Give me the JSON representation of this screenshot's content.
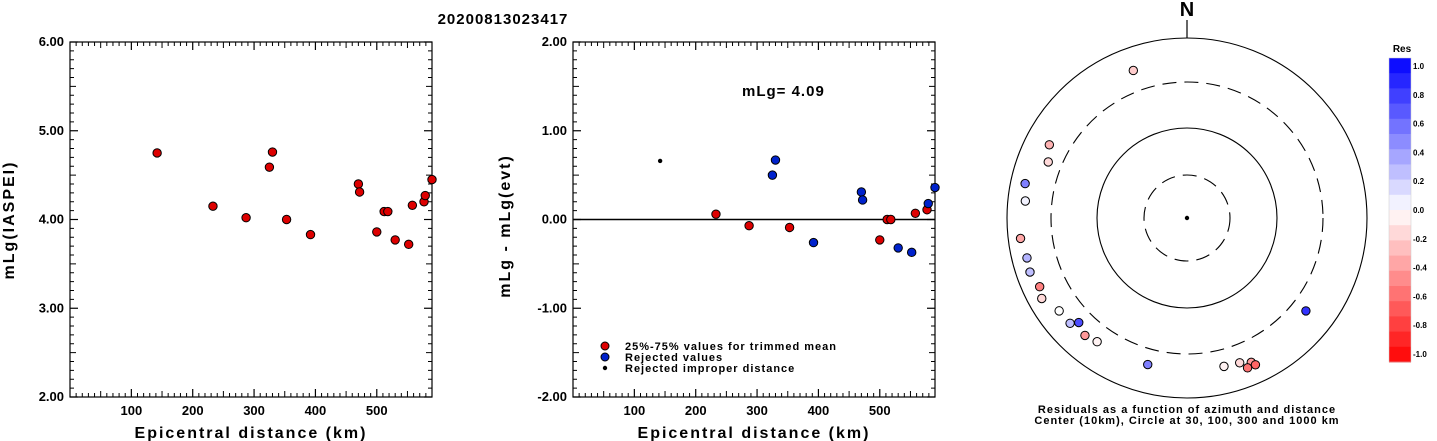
{
  "title": "20200813023417",
  "north_label": "N",
  "magnitude_label": "mLg= 4.09",
  "polar_caption": [
    "Residuals as a function of azimuth and distance",
    "Center (10km), Circle at 30, 100, 300 and 1000 km"
  ],
  "colorbar": {
    "title": "Res",
    "ticks": [
      "1.0",
      "0.8",
      "0.6",
      "0.4",
      "0.2",
      "0.0",
      "-0.2",
      "-0.4",
      "-0.6",
      "-0.8",
      "-1.0"
    ]
  },
  "legend": {
    "entries": [
      {
        "label": "25%-75% values for trimmed mean",
        "color": "#dd0000"
      },
      {
        "label": "Rejected values",
        "color": "#0022cc"
      },
      {
        "label": "Rejected improper distance",
        "color": "#000000"
      }
    ]
  },
  "chart_data": [
    {
      "type": "scatter",
      "title": "20200813023417",
      "xlabel": "Epicentral distance (km)",
      "ylabel": "mLg(IASPEI)",
      "xlim": [
        0,
        590
      ],
      "ylim": [
        2.0,
        6.0
      ],
      "xticks": [
        "100",
        "200",
        "300",
        "400",
        "500"
      ],
      "yticks": [
        "2.00",
        "3.00",
        "4.00",
        "5.00",
        "6.00"
      ],
      "points": [
        {
          "x": 142,
          "y": 4.75
        },
        {
          "x": 233,
          "y": 4.15
        },
        {
          "x": 287,
          "y": 4.02
        },
        {
          "x": 325,
          "y": 4.59
        },
        {
          "x": 330,
          "y": 4.76
        },
        {
          "x": 353,
          "y": 4.0
        },
        {
          "x": 392,
          "y": 3.83
        },
        {
          "x": 470,
          "y": 4.4
        },
        {
          "x": 472,
          "y": 4.31
        },
        {
          "x": 500,
          "y": 3.86
        },
        {
          "x": 512,
          "y": 4.09
        },
        {
          "x": 518,
          "y": 4.09
        },
        {
          "x": 530,
          "y": 3.77
        },
        {
          "x": 552,
          "y": 3.72
        },
        {
          "x": 558,
          "y": 4.16
        },
        {
          "x": 577,
          "y": 4.2
        },
        {
          "x": 579,
          "y": 4.27
        },
        {
          "x": 590,
          "y": 4.45
        }
      ]
    },
    {
      "type": "scatter",
      "xlabel": "Epicentral distance (km)",
      "ylabel": "mLg - mLg(evt)",
      "xlim": [
        0,
        590
      ],
      "ylim": [
        -2.0,
        2.0
      ],
      "xticks": [
        "100",
        "200",
        "300",
        "400",
        "500"
      ],
      "yticks": [
        "-2.00",
        "-1.00",
        "0.00",
        "1.00",
        "2.00"
      ],
      "series": [
        {
          "name": "25%-75% values for trimmed mean",
          "points": [
            {
              "x": 233,
              "y": 0.06
            },
            {
              "x": 287,
              "y": -0.07
            },
            {
              "x": 353,
              "y": -0.09
            },
            {
              "x": 500,
              "y": -0.23
            },
            {
              "x": 512,
              "y": 0.0
            },
            {
              "x": 518,
              "y": 0.0
            },
            {
              "x": 558,
              "y": 0.07
            },
            {
              "x": 577,
              "y": 0.11
            }
          ]
        },
        {
          "name": "Rejected values",
          "points": [
            {
              "x": 325,
              "y": 0.5
            },
            {
              "x": 330,
              "y": 0.67
            },
            {
              "x": 392,
              "y": -0.26
            },
            {
              "x": 470,
              "y": 0.31
            },
            {
              "x": 472,
              "y": 0.22
            },
            {
              "x": 530,
              "y": -0.32
            },
            {
              "x": 552,
              "y": -0.37
            },
            {
              "x": 579,
              "y": 0.18
            },
            {
              "x": 590,
              "y": 0.36
            }
          ]
        },
        {
          "name": "Rejected improper distance",
          "points": [
            {
              "x": 142,
              "y": 0.66
            }
          ]
        }
      ]
    },
    {
      "type": "scatter",
      "subtype": "polar",
      "center_km": 10,
      "circles_km": [
        30,
        100,
        300,
        1000
      ],
      "points": [
        {
          "azimuth": 340,
          "distance": 555,
          "res": -0.2
        },
        {
          "azimuth": 298,
          "distance": 540,
          "res": -0.3
        },
        {
          "azimuth": 292,
          "distance": 460,
          "res": -0.15
        },
        {
          "azimuth": 276,
          "distance": 640,
          "res": 0.05
        },
        {
          "azimuth": 282,
          "distance": 690,
          "res": 0.5
        },
        {
          "azimuth": 263,
          "distance": 730,
          "res": -0.35
        },
        {
          "azimuth": 256,
          "distance": 680,
          "res": 0.3
        },
        {
          "azimuth": 251,
          "distance": 700,
          "res": 0.25
        },
        {
          "azimuth": 245,
          "distance": 640,
          "res": -0.5
        },
        {
          "azimuth": 241,
          "distance": 700,
          "res": -0.15
        },
        {
          "azimuth": 234,
          "distance": 570,
          "res": 0.0
        },
        {
          "azimuth": 228,
          "distance": 560,
          "res": 0.25
        },
        {
          "azimuth": 226,
          "distance": 470,
          "res": 0.7
        },
        {
          "azimuth": 221,
          "distance": 535,
          "res": -0.4
        },
        {
          "azimuth": 216,
          "distance": 500,
          "res": -0.05
        },
        {
          "azimuth": 195,
          "distance": 485,
          "res": 0.5
        },
        {
          "azimuth": 166,
          "distance": 500,
          "res": -0.05
        },
        {
          "azimuth": 160,
          "distance": 515,
          "res": -0.15
        },
        {
          "azimuth": 156,
          "distance": 570,
          "res": -0.4
        },
        {
          "azimuth": 158,
          "distance": 625,
          "res": -0.55
        },
        {
          "azimuth": 155,
          "distance": 630,
          "res": -0.6
        },
        {
          "azimuth": 128,
          "distance": 475,
          "res": 0.8
        }
      ]
    }
  ]
}
